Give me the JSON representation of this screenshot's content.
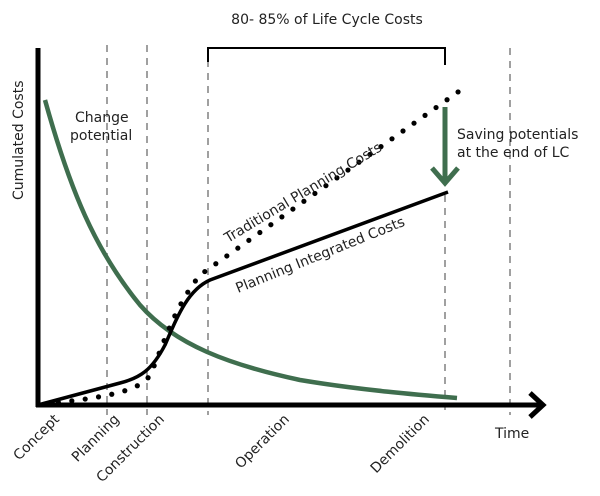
{
  "title": "80- 85% of Life Cycle Costs",
  "y_axis_label": "Cumulated Costs",
  "x_axis_label": "Time",
  "phases": [
    "Concept",
    "Planning",
    "Construction",
    "Operation",
    "Demolition"
  ],
  "curves": {
    "change_potential": {
      "label_line1": "Change",
      "label_line2": "potential",
      "color": "#3f6e4e"
    },
    "traditional": {
      "label": "Traditional Planning Costs",
      "color": "#000000",
      "style": "dotted"
    },
    "integrated": {
      "label": "Planning Integrated Costs",
      "color": "#000000",
      "style": "solid"
    }
  },
  "saving": {
    "line1": "Saving potentials",
    "line2": "at the end of LC",
    "arrow_color": "#3f6e4e"
  }
}
